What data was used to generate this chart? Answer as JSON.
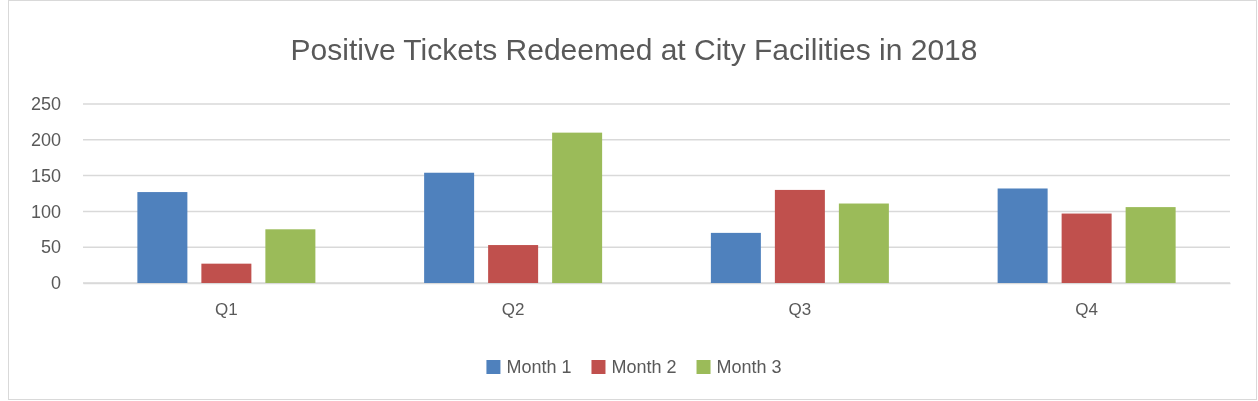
{
  "chart_data": {
    "type": "bar",
    "title": "Positive Tickets Redeemed at City Facilities in 2018",
    "categories": [
      "Q1",
      "Q2",
      "Q3",
      "Q4"
    ],
    "series": [
      {
        "name": "Month 1",
        "color": "#4f81bd",
        "values": [
          127,
          154,
          70,
          132
        ]
      },
      {
        "name": "Month 2",
        "color": "#c0504d",
        "values": [
          27,
          53,
          130,
          97
        ]
      },
      {
        "name": "Month 3",
        "color": "#9bbb59",
        "values": [
          75,
          210,
          111,
          106
        ]
      }
    ],
    "ylim": [
      0,
      250
    ],
    "yticks": [
      0,
      50,
      100,
      150,
      200,
      250
    ],
    "grid": "y",
    "legend": "bottom"
  }
}
